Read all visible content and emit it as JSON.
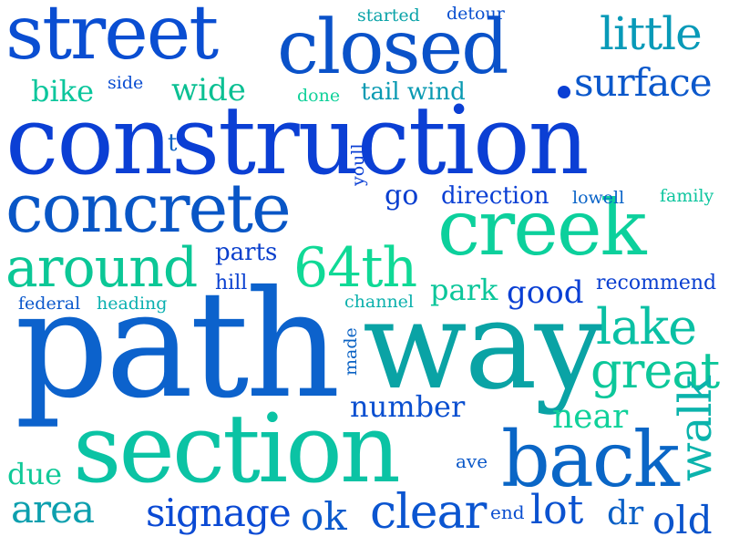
{
  "words": [
    {
      "text": "construction",
      "color": "#0b3fd4"
    },
    {
      "text": "path",
      "color": "#0c62cc"
    },
    {
      "text": "way",
      "color": "#0aa3a5"
    },
    {
      "text": "section",
      "color": "#0bc3a4"
    },
    {
      "text": "street",
      "color": "#0a4ed2"
    },
    {
      "text": "closed",
      "color": "#0a52c9"
    },
    {
      "text": "concrete",
      "color": "#0956c6"
    },
    {
      "text": "creek",
      "color": "#0cd09c"
    },
    {
      "text": "back",
      "color": "#0a66c6"
    },
    {
      "text": "around",
      "color": "#0bc796"
    },
    {
      "text": "64th",
      "color": "#10d996"
    },
    {
      "text": "little",
      "color": "#089ab8"
    },
    {
      "text": "surface",
      "color": "#0b58cb"
    },
    {
      "text": "lake",
      "color": "#0ac0a4"
    },
    {
      "text": "great",
      "color": "#0cc79a"
    },
    {
      "text": "walk",
      "color": "#0bb3ac"
    },
    {
      "text": "clear",
      "color": "#0b55d0"
    },
    {
      "text": "signage",
      "color": "#0b4ad4"
    },
    {
      "text": "number",
      "color": "#0a4fd0"
    },
    {
      "text": "area",
      "color": "#0c9fae"
    },
    {
      "text": "lot",
      "color": "#0a52d0"
    },
    {
      "text": "old",
      "color": "#0b54cc"
    },
    {
      "text": "ok",
      "color": "#0b5acc"
    },
    {
      "text": "near",
      "color": "#10d19a"
    },
    {
      "text": "park",
      "color": "#0bc69a"
    },
    {
      "text": "good",
      "color": "#0a3fd4"
    },
    {
      "text": "dr",
      "color": "#0a60c6"
    },
    {
      "text": "wide",
      "color": "#0bc093"
    },
    {
      "text": "bike",
      "color": "#0bc69c"
    },
    {
      "text": "due",
      "color": "#10c998"
    },
    {
      "text": "go",
      "color": "#0a3fd0"
    },
    {
      "text": "direction",
      "color": "#0a3fd4"
    },
    {
      "text": "parts",
      "color": "#0a3fcc"
    },
    {
      "text": "tail wind",
      "color": "#0a9ab2"
    },
    {
      "text": "started",
      "color": "#0aa3a8"
    },
    {
      "text": "detour",
      "color": "#0a50d0"
    },
    {
      "text": "done",
      "color": "#10d19a"
    },
    {
      "text": "side",
      "color": "#0b4ed2"
    },
    {
      "text": "t",
      "color": "#0a62c4"
    },
    {
      "text": "youll",
      "color": "#0b3fd4"
    },
    {
      "text": "lowell",
      "color": "#0a64c8"
    },
    {
      "text": "family",
      "color": "#0cc59e"
    },
    {
      "text": "recommend",
      "color": "#0a3fd0"
    },
    {
      "text": "hill",
      "color": "#0a40d0"
    },
    {
      "text": "federal",
      "color": "#0b58cc"
    },
    {
      "text": "heading",
      "color": "#0ab0b0"
    },
    {
      "text": "channel",
      "color": "#0bb0ac"
    },
    {
      "text": "made",
      "color": "#0a62c4"
    },
    {
      "text": "ave",
      "color": "#0a58c8"
    },
    {
      "text": "end",
      "color": "#0a4ed0"
    }
  ]
}
